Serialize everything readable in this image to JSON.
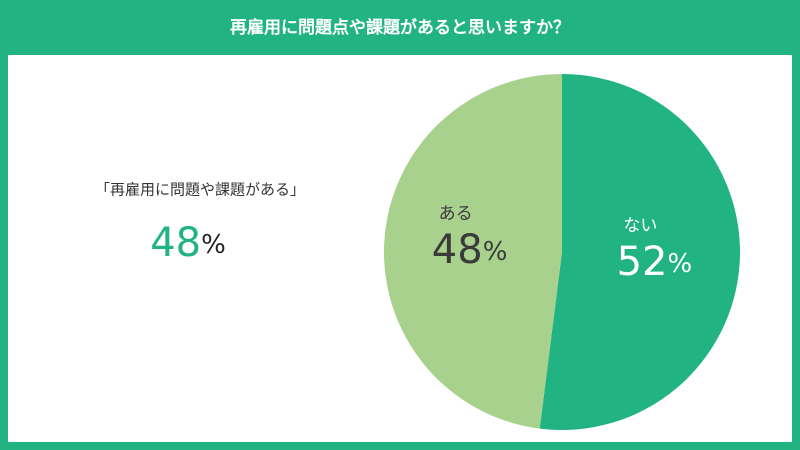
{
  "chart_data": {
    "type": "pie",
    "title": "再雇用に問題点や課題があると思いますか？",
    "annotation": "「再雇用に問題や課題がある」",
    "categories": [
      "ない",
      "ある"
    ],
    "values": [
      52,
      48
    ],
    "unit": "%",
    "colors": [
      "#22b383",
      "#a9d18e"
    ],
    "label_colors": [
      "#ffffff",
      "#3a3a3a"
    ]
  }
}
